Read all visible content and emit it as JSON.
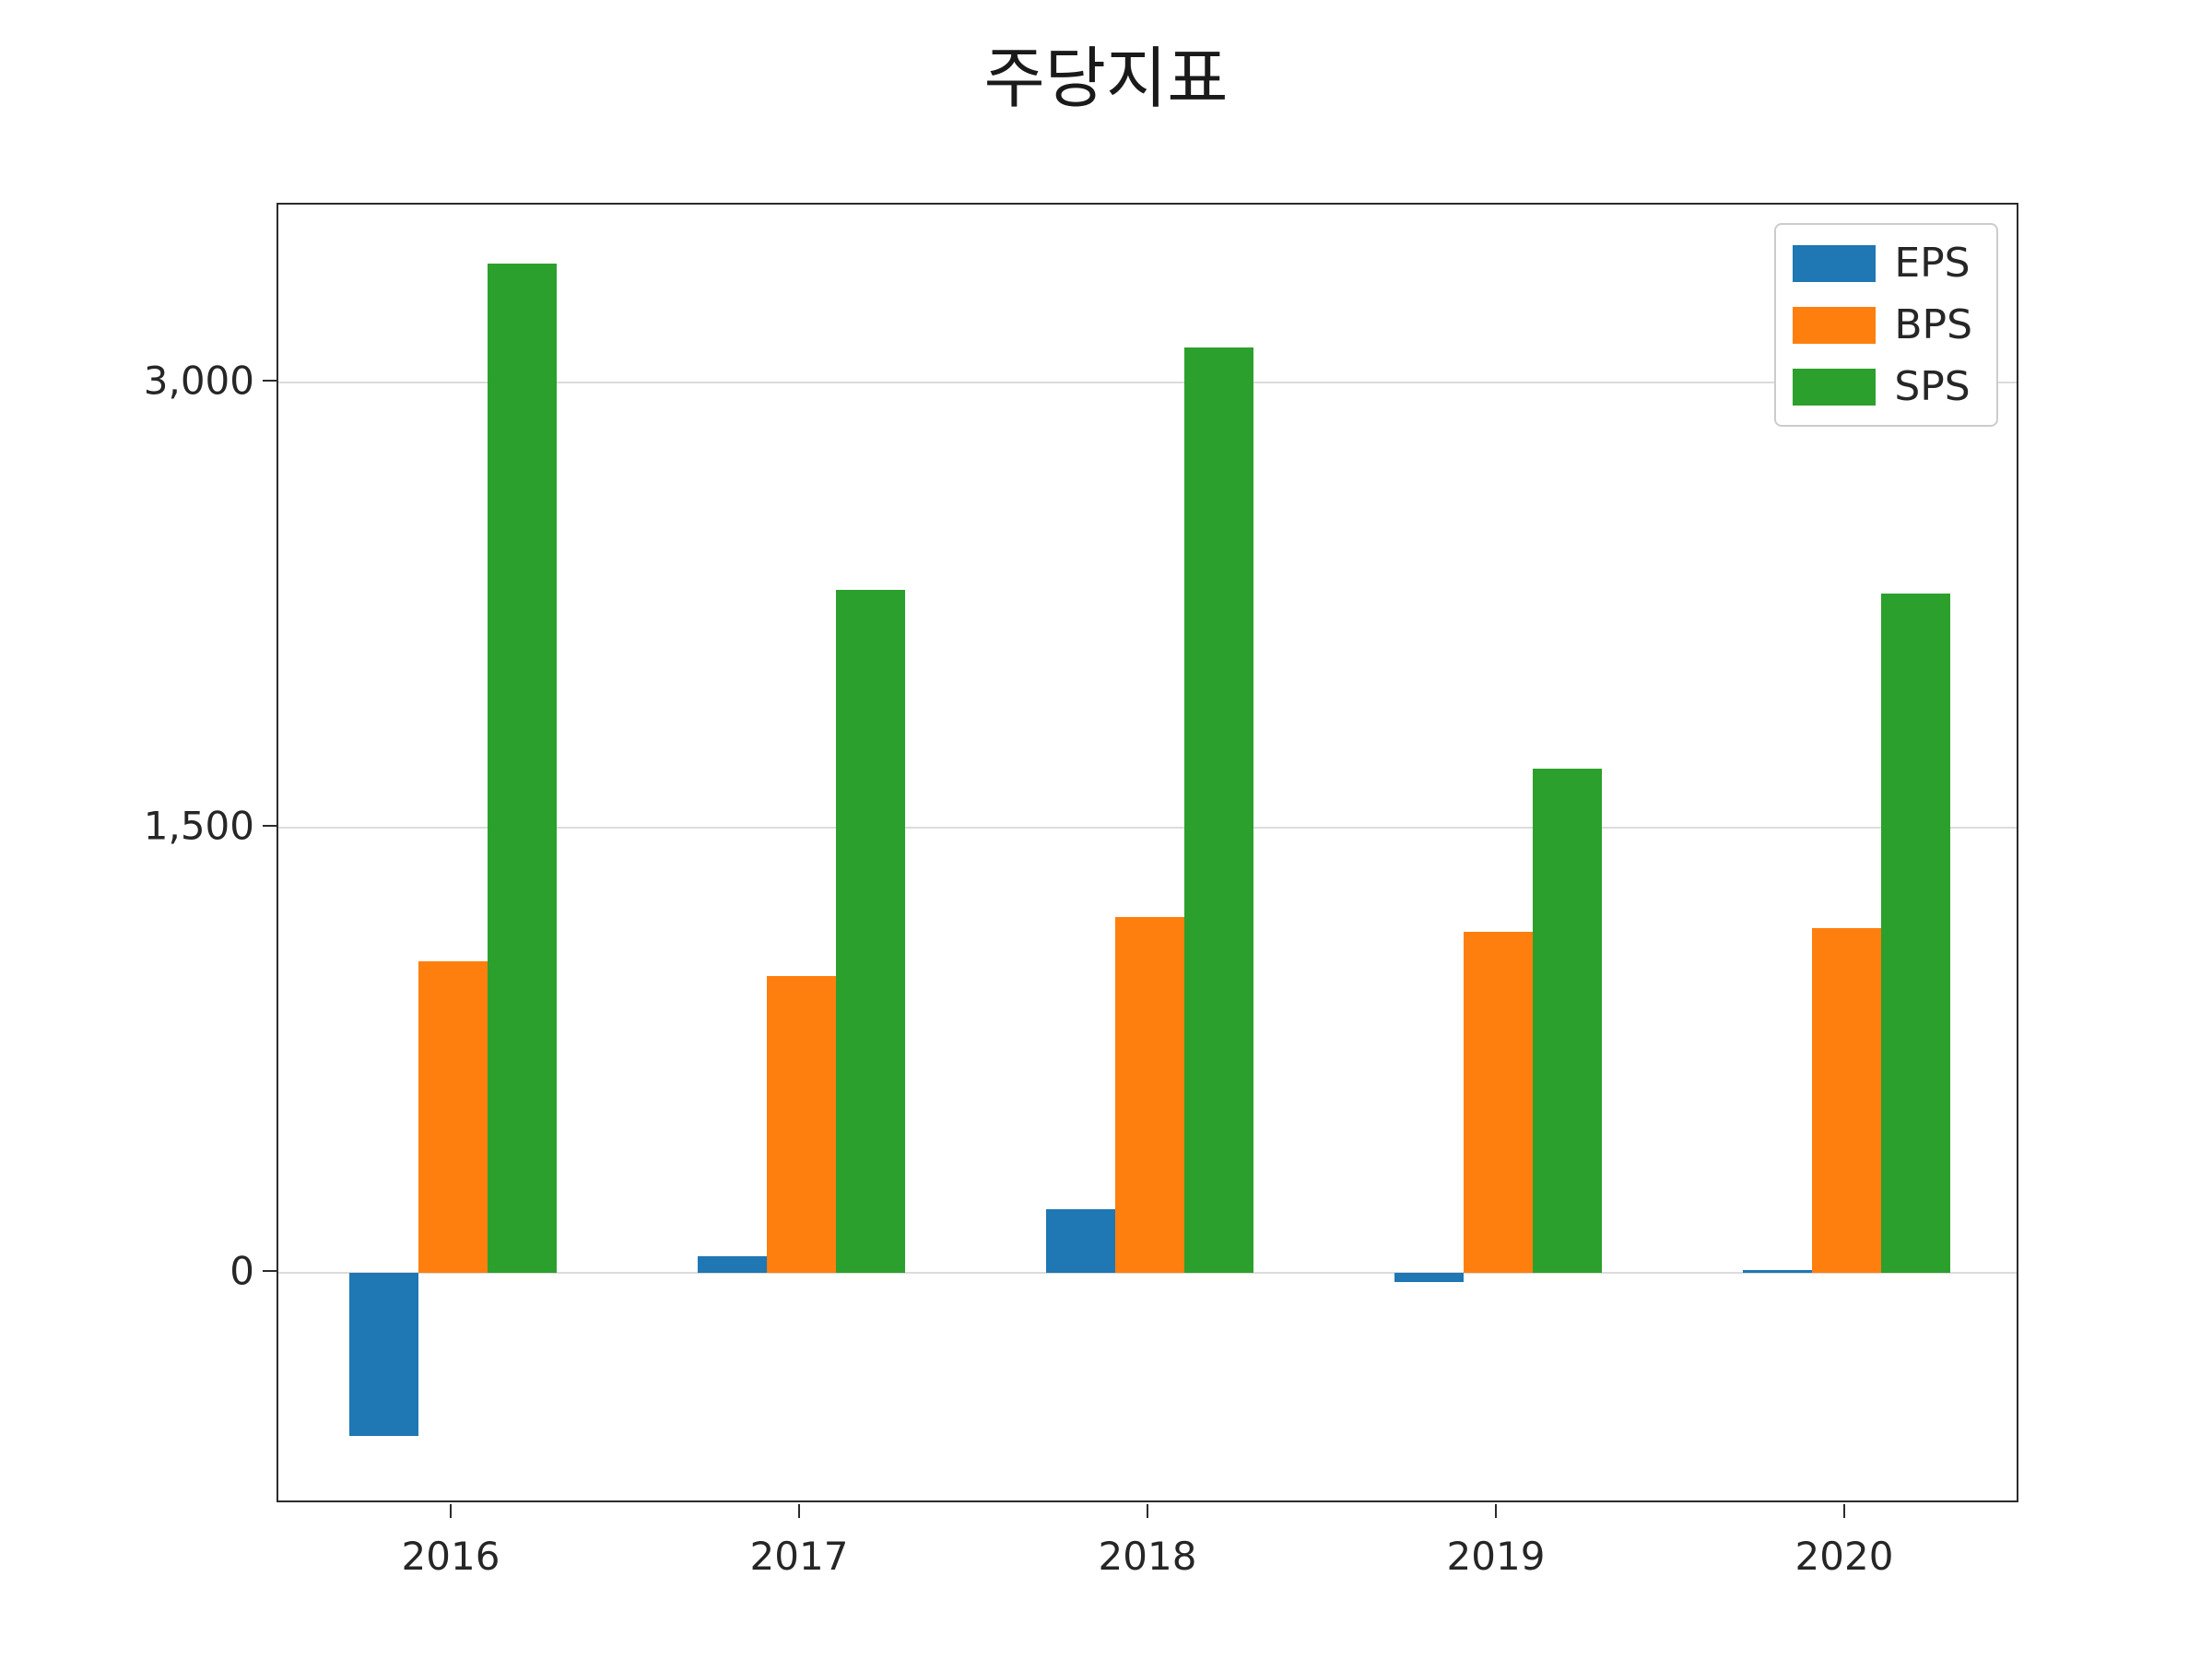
{
  "title": "주당지표",
  "legend": {
    "position": "upper right",
    "entries": [
      {
        "label": "EPS",
        "color": "#1f77b4"
      },
      {
        "label": "BPS",
        "color": "#ff7f0e"
      },
      {
        "label": "SPS",
        "color": "#2ca02c"
      }
    ]
  },
  "chart_data": {
    "type": "bar",
    "title": "주당지표",
    "categories": [
      "2016",
      "2017",
      "2018",
      "2019",
      "2020"
    ],
    "series": [
      {
        "name": "EPS",
        "color": "#1f77b4",
        "values": [
          -550,
          55,
          215,
          -30,
          10
        ]
      },
      {
        "name": "BPS",
        "color": "#ff7f0e",
        "values": [
          1050,
          1000,
          1200,
          1150,
          1160
        ]
      },
      {
        "name": "SPS",
        "color": "#2ca02c",
        "values": [
          3400,
          2300,
          3120,
          1700,
          2290
        ]
      }
    ],
    "xlabel": "",
    "ylabel": "",
    "ylim": [
      -780,
      3600
    ],
    "yticks": [
      0,
      1500,
      3000
    ],
    "ytick_labels": [
      "0",
      "1,500",
      "3,000"
    ],
    "grid": true,
    "legend_position": "upper right"
  }
}
